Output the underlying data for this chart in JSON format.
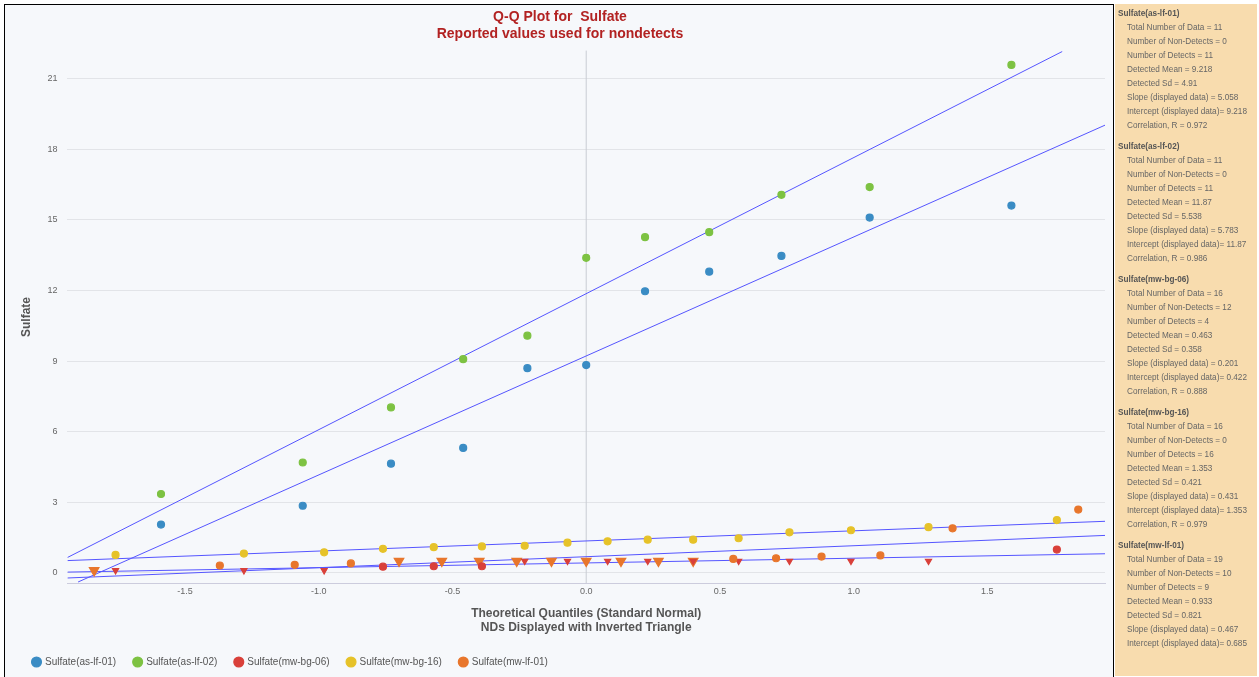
{
  "chart_data": {
    "type": "scatter",
    "title": "Q-Q Plot for  Sulfate",
    "subtitle": "Reported values used for nondetects",
    "xlabel": "Theoretical Quantiles (Standard Normal)\nNDs Displayed with Inverted Triangle",
    "ylabel": "Sulfate",
    "xlim": [
      -1.94,
      1.94
    ],
    "ylim": [
      -0.45,
      22.2
    ],
    "xticks": [
      -1.5,
      {
        "value": -1,
        "label": "-1.0"
      },
      -0.5,
      {
        "value": 0,
        "label": "0.0"
      },
      0.5,
      {
        "value": 1,
        "label": "1.0"
      },
      1.5
    ],
    "yticks": [
      0,
      3,
      6,
      9,
      12,
      15,
      18,
      21
    ],
    "grid": "y",
    "legend": "bottom",
    "marker": "circle",
    "ref_lines": [
      {
        "axis": "x",
        "value": 0,
        "color": "#c8ccd4"
      }
    ],
    "series": [
      {
        "name": "Sulfate(as-lf-01)",
        "color": "#3a8cc4",
        "x": [
          -1.59,
          -1.06,
          -0.73,
          -0.46,
          -0.22,
          0,
          0.22,
          0.46,
          0.73,
          1.06,
          1.59
        ],
        "values": [
          2.05,
          2.85,
          4.64,
          5.31,
          8.7,
          8.83,
          11.97,
          12.8,
          13.47,
          15.1,
          15.61
        ]
      },
      {
        "name": "Sulfate(as-lf-02)",
        "color": "#7dc242",
        "x": [
          -1.59,
          -1.06,
          -0.73,
          -0.46,
          -0.22,
          0,
          0.22,
          0.46,
          0.73,
          1.06,
          1.59
        ],
        "values": [
          3.35,
          4.69,
          7.03,
          9.08,
          10.08,
          13.39,
          14.27,
          14.48,
          16.07,
          16.4,
          21.59
        ]
      },
      {
        "name": "Sulfate(mw-bg-06)",
        "color": "#d9403a",
        "x": [
          -0.76,
          -0.57,
          -0.39,
          1.76
        ],
        "values": [
          0.26,
          0.28,
          0.28,
          0.99
        ]
      },
      {
        "name": "Sulfate(mw-bg-16)",
        "color": "#e6c229",
        "x": [
          -1.76,
          -1.28,
          -0.98,
          -0.76,
          -0.57,
          -0.39,
          -0.23,
          -0.07,
          0.08,
          0.23,
          0.4,
          0.57,
          0.76,
          0.99,
          1.28,
          1.76
        ],
        "values": [
          0.76,
          0.82,
          0.87,
          1.02,
          1.09,
          1.12,
          1.15,
          1.28,
          1.34,
          1.41,
          1.41,
          1.47,
          1.72,
          1.81,
          1.94,
          2.24
        ]
      },
      {
        "name": "Sulfate(mw-lf-01)",
        "color": "#e8762c",
        "x": [
          -1.37,
          -1.09,
          -0.88,
          0.55,
          0.71,
          0.88,
          1.1,
          1.37,
          1.84
        ],
        "values": [
          0.31,
          0.34,
          0.4,
          0.59,
          0.62,
          0.69,
          0.74,
          1.89,
          2.69
        ]
      },
      {
        "color": "#d9403a",
        "marker": "triangle",
        "x": [
          -1.76,
          -1.28,
          -0.98,
          -0.23,
          -0.07,
          0.08,
          0.23,
          0.4,
          0.57,
          0.76,
          0.99,
          1.28
        ],
        "values": [
          0.1,
          0.1,
          0.1,
          0.5,
          0.5,
          0.5,
          0.5,
          0.5,
          0.5,
          0.5,
          0.5,
          0.5
        ]
      },
      {
        "color": "#e8762c",
        "marker": "triangle",
        "x": [
          -1.84,
          -0.7,
          -0.54,
          -0.4,
          -0.26,
          -0.13,
          0,
          0.13,
          0.27,
          0.4
        ],
        "values": [
          0.1,
          0.5,
          0.5,
          0.5,
          0.5,
          0.5,
          0.5,
          0.5,
          0.5,
          0.5
        ]
      },
      {
        "type": "line",
        "marker": "none",
        "color": "#5555ff",
        "x": [
          -1.9,
          1.94
        ],
        "values": [
          -0.39,
          19.03
        ]
      },
      {
        "type": "line",
        "marker": "none",
        "color": "#5555ff",
        "x": [
          -1.94,
          1.78
        ],
        "values": [
          0.65,
          22.16
        ]
      },
      {
        "type": "line",
        "marker": "none",
        "color": "#5555ff",
        "x": [
          -1.94,
          1.94
        ],
        "values": [
          0.03,
          0.81
        ]
      },
      {
        "type": "line",
        "marker": "none",
        "color": "#5555ff",
        "x": [
          -1.94,
          1.94
        ],
        "values": [
          0.52,
          2.19
        ]
      },
      {
        "type": "line",
        "marker": "none",
        "color": "#5555ff",
        "x": [
          -1.94,
          1.94
        ],
        "values": [
          -0.22,
          1.59
        ]
      }
    ],
    "annotations": [
      "Sulfate(as-lf-01)",
      "Total Number of Data = 11",
      "Number of Non-Detects = 0",
      "Number of Detects = 11",
      "Detected Mean = 9.218",
      "Detected Sd = 4.91",
      "Slope (displayed data) = 5.058",
      "Intercept (displayed data)= 9.218",
      "Correlation, R = 0.972",
      "Sulfate(as-lf-02)",
      "Total Number of Data = 11",
      "Number of Non-Detects = 0",
      "Number of Detects = 11",
      "Detected Mean = 11.87",
      "Detected Sd = 5.538",
      "Slope (displayed data) = 5.783",
      "Intercept (displayed data)= 11.87",
      "Correlation, R = 0.986",
      "Sulfate(mw-bg-06)",
      "Total Number of Data = 16",
      "Number of Non-Detects = 12",
      "Number of Detects = 4",
      "Detected Mean = 0.463",
      "Detected Sd = 0.358",
      "Slope (displayed data) = 0.201",
      "Intercept (displayed data)= 0.422",
      "Correlation, R = 0.888",
      "Sulfate(mw-bg-16)",
      "Total Number of Data = 16",
      "Number of Non-Detects = 0",
      "Number of Detects = 16",
      "Detected Mean = 1.353",
      "Detected Sd = 0.421",
      "Slope (displayed data) = 0.431",
      "Intercept (displayed data)= 1.353",
      "Correlation, R = 0.979",
      "Sulfate(mw-lf-01)",
      "Total Number of Data = 19",
      "Number of Non-Detects = 10",
      "Number of Detects = 9",
      "Detected Mean = 0.933",
      "Detected Sd = 0.821",
      "Slope (displayed data) = 0.467",
      "Intercept (displayed data)= 0.685"
    ]
  }
}
